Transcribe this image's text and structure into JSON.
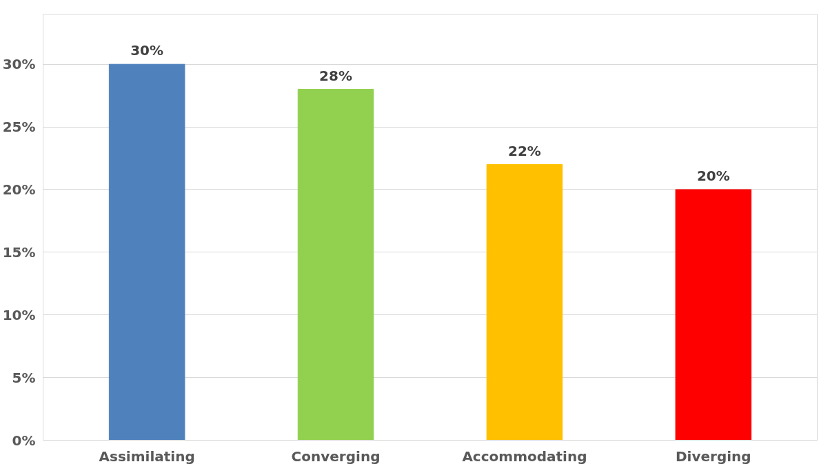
{
  "chart_data": {
    "type": "bar",
    "categories": [
      "Assimilating",
      "Converging",
      "Accommodating",
      "Diverging"
    ],
    "values": [
      30,
      28,
      22,
      20
    ],
    "colors": [
      "#4f81bd",
      "#92d050",
      "#ffc000",
      "#ff0000"
    ],
    "value_labels": [
      "30%",
      "28%",
      "22%",
      "20%"
    ],
    "ylim": [
      0,
      34
    ],
    "yticks": [
      {
        "value": 0,
        "label": "0%"
      },
      {
        "value": 5,
        "label": "5%"
      },
      {
        "value": 10,
        "label": "10%"
      },
      {
        "value": 15,
        "label": "15%"
      },
      {
        "value": 20,
        "label": "20%"
      },
      {
        "value": 25,
        "label": "25%"
      },
      {
        "value": 30,
        "label": "30%"
      }
    ],
    "grid": "y"
  }
}
